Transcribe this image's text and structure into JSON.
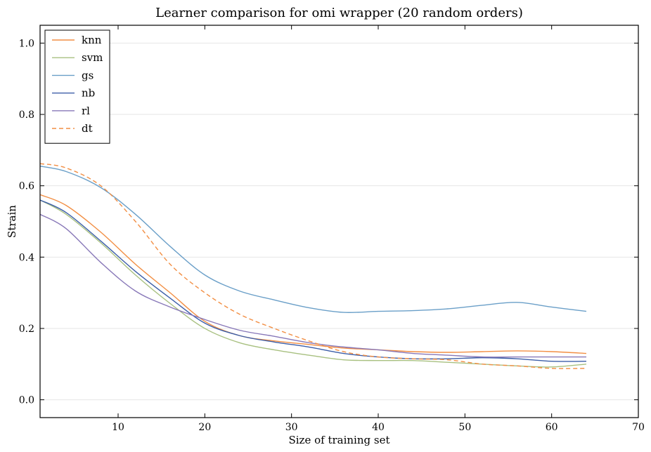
{
  "chart_data": {
    "type": "line",
    "title": "Learner comparison for omi wrapper (20 random orders)",
    "xlabel": "Size of training set",
    "ylabel": "Strain",
    "xlim": [
      1,
      70
    ],
    "ylim": [
      -0.05,
      1.05
    ],
    "xticks": [
      10,
      20,
      30,
      40,
      50,
      60,
      70
    ],
    "yticks": [
      0.0,
      0.2,
      0.4,
      0.6,
      0.8,
      1.0
    ],
    "ytick_labels": [
      "0.0",
      "0.2",
      "0.4",
      "0.6",
      "0.8",
      "1.0"
    ],
    "grid": "horizontal",
    "legend_position": "top-left",
    "x": [
      1,
      4,
      8,
      12,
      16,
      20,
      24,
      28,
      32,
      36,
      40,
      44,
      48,
      52,
      56,
      60,
      64
    ],
    "series": [
      {
        "name": "knn",
        "color": "#f28e43",
        "dash": "solid",
        "values": [
          0.575,
          0.545,
          0.47,
          0.38,
          0.3,
          0.22,
          0.18,
          0.165,
          0.155,
          0.145,
          0.14,
          0.135,
          0.133,
          0.135,
          0.137,
          0.135,
          0.13
        ]
      },
      {
        "name": "svm",
        "color": "#a8c080",
        "dash": "solid",
        "values": [
          0.56,
          0.52,
          0.44,
          0.35,
          0.27,
          0.2,
          0.16,
          0.14,
          0.125,
          0.112,
          0.11,
          0.11,
          0.105,
          0.1,
          0.095,
          0.092,
          0.1
        ]
      },
      {
        "name": "gs",
        "color": "#6a9fc8",
        "dash": "solid",
        "values": [
          0.655,
          0.64,
          0.595,
          0.52,
          0.43,
          0.35,
          0.305,
          0.28,
          0.258,
          0.245,
          0.248,
          0.25,
          0.255,
          0.265,
          0.273,
          0.26,
          0.248
        ]
      },
      {
        "name": "nb",
        "color": "#3c5ea8",
        "dash": "solid",
        "values": [
          0.56,
          0.525,
          0.445,
          0.36,
          0.285,
          0.215,
          0.18,
          0.162,
          0.148,
          0.13,
          0.12,
          0.115,
          0.115,
          0.118,
          0.115,
          0.108,
          0.108
        ]
      },
      {
        "name": "rl",
        "color": "#8878b8",
        "dash": "solid",
        "values": [
          0.52,
          0.48,
          0.385,
          0.305,
          0.26,
          0.225,
          0.195,
          0.178,
          0.16,
          0.148,
          0.14,
          0.13,
          0.125,
          0.12,
          0.12,
          0.12,
          0.12
        ]
      },
      {
        "name": "dt",
        "color": "#f28e43",
        "dash": "dashed",
        "values": [
          0.662,
          0.65,
          0.6,
          0.5,
          0.38,
          0.3,
          0.24,
          0.2,
          0.165,
          0.135,
          0.12,
          0.115,
          0.112,
          0.1,
          0.095,
          0.088,
          0.088
        ]
      }
    ]
  }
}
